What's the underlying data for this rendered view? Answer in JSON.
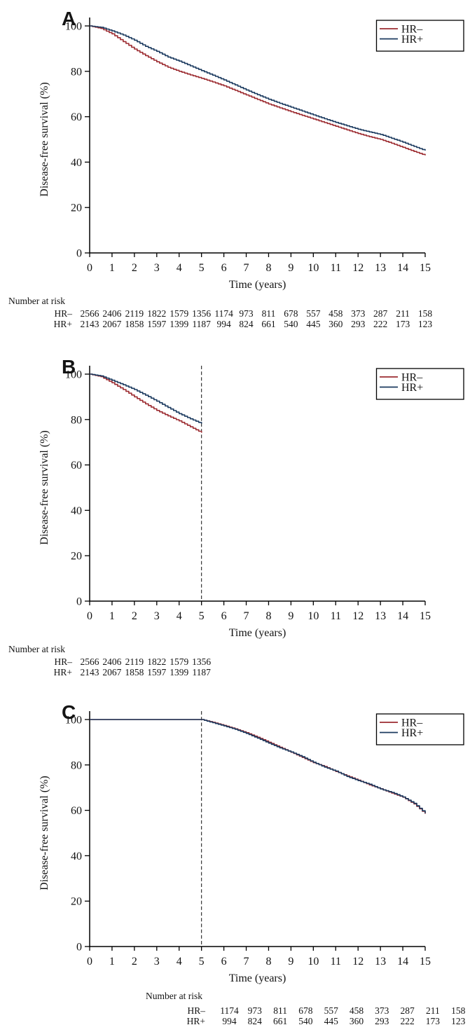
{
  "figure": {
    "ylabel": "Disease-free survival (%)",
    "xlabel": "Time (years)",
    "risk_heading": "Number at risk",
    "colors": {
      "hr_minus": "#9c2b30",
      "hr_plus": "#1b3a5f",
      "axis": "#000000",
      "dashed": "#222222"
    }
  },
  "chart_data": [
    {
      "panel_label": "A",
      "type": "line",
      "xlabel": "Time (years)",
      "ylabel": "Disease-free survival (%)",
      "xlim": [
        0,
        15
      ],
      "ylim": [
        0,
        100
      ],
      "xticks": [
        0,
        1,
        2,
        3,
        4,
        5,
        6,
        7,
        8,
        9,
        10,
        11,
        12,
        13,
        14,
        15
      ],
      "yticks": [
        0,
        20,
        40,
        60,
        80,
        100
      ],
      "legend_position": "top-right",
      "dashed_vline_x": null,
      "series": [
        {
          "name": "HR–",
          "color": "#9c2b30",
          "x": [
            0,
            0.5,
            1,
            1.5,
            2,
            2.5,
            3,
            3.5,
            4,
            4.5,
            5,
            5.5,
            6,
            6.5,
            7,
            7.5,
            8,
            8.5,
            9,
            9.5,
            10,
            10.5,
            11,
            11.5,
            12,
            12.5,
            13,
            13.5,
            14,
            14.5,
            15
          ],
          "y": [
            100,
            98.9,
            96.5,
            93.1,
            89.8,
            86.9,
            84.2,
            81.8,
            80.0,
            78.4,
            76.9,
            75.3,
            73.6,
            71.6,
            69.6,
            67.6,
            65.6,
            63.9,
            62.2,
            60.6,
            59.0,
            57.4,
            55.8,
            54.2,
            52.6,
            51.2,
            50.0,
            48.3,
            46.5,
            44.7,
            43.0
          ]
        },
        {
          "name": "HR+",
          "color": "#1b3a5f",
          "x": [
            0,
            0.5,
            1,
            1.5,
            2,
            2.5,
            3,
            3.5,
            4,
            4.5,
            5,
            5.5,
            6,
            6.5,
            7,
            7.5,
            8,
            8.5,
            9,
            9.5,
            10,
            10.5,
            11,
            11.5,
            12,
            12.5,
            13,
            13.5,
            14,
            14.5,
            15
          ],
          "y": [
            100,
            99.4,
            97.8,
            96.0,
            93.7,
            91.0,
            88.8,
            86.3,
            84.5,
            82.4,
            80.3,
            78.3,
            76.2,
            74.0,
            71.8,
            69.7,
            67.7,
            65.9,
            64.2,
            62.5,
            60.8,
            59.1,
            57.5,
            56.0,
            54.5,
            53.3,
            52.2,
            50.5,
            48.8,
            46.9,
            45.1
          ]
        }
      ],
      "number_at_risk": {
        "heading": "Number at risk",
        "time_points": [
          0,
          1,
          2,
          3,
          4,
          5,
          6,
          7,
          8,
          9,
          10,
          11,
          12,
          13,
          14,
          15
        ],
        "rows": [
          {
            "name": "HR–",
            "values": [
              2566,
              2406,
              2119,
              1822,
              1579,
              1356,
              1174,
              973,
              811,
              678,
              557,
              458,
              373,
              287,
              211,
              158
            ]
          },
          {
            "name": "HR+",
            "values": [
              2143,
              2067,
              1858,
              1597,
              1399,
              1187,
              994,
              824,
              661,
              540,
              445,
              360,
              293,
              222,
              173,
              123
            ]
          }
        ]
      }
    },
    {
      "panel_label": "B",
      "type": "line",
      "xlabel": "Time (years)",
      "ylabel": "Disease-free survival (%)",
      "xlim": [
        0,
        15
      ],
      "ylim": [
        0,
        100
      ],
      "xticks": [
        0,
        1,
        2,
        3,
        4,
        5,
        6,
        7,
        8,
        9,
        10,
        11,
        12,
        13,
        14,
        15
      ],
      "yticks": [
        0,
        20,
        40,
        60,
        80,
        100
      ],
      "legend_position": "top-right",
      "dashed_vline_x": 5,
      "series": [
        {
          "name": "HR–",
          "color": "#9c2b30",
          "x": [
            0,
            0.5,
            1,
            1.5,
            2,
            2.5,
            3,
            3.5,
            4,
            4.5,
            5
          ],
          "y": [
            100,
            98.9,
            96.2,
            93.2,
            90.0,
            86.9,
            84.0,
            81.6,
            79.4,
            76.8,
            74.2
          ]
        },
        {
          "name": "HR+",
          "color": "#1b3a5f",
          "x": [
            0,
            0.5,
            1,
            1.5,
            2,
            2.5,
            3,
            3.5,
            4,
            4.5,
            5
          ],
          "y": [
            100,
            99.2,
            97.3,
            95.3,
            93.2,
            90.7,
            88.1,
            85.3,
            82.6,
            80.3,
            78.2
          ]
        }
      ],
      "number_at_risk": {
        "heading": "Number at risk",
        "time_points": [
          0,
          1,
          2,
          3,
          4,
          5
        ],
        "rows": [
          {
            "name": "HR–",
            "values": [
              2566,
              2406,
              2119,
              1822,
              1579,
              1356
            ]
          },
          {
            "name": "HR+",
            "values": [
              2143,
              2067,
              1858,
              1597,
              1399,
              1187
            ]
          }
        ]
      }
    },
    {
      "panel_label": "C",
      "type": "line",
      "xlabel": "Time (years)",
      "ylabel": "Disease-free survival (%)",
      "xlim": [
        0,
        15
      ],
      "ylim": [
        0,
        100
      ],
      "xticks": [
        0,
        1,
        2,
        3,
        4,
        5,
        6,
        7,
        8,
        9,
        10,
        11,
        12,
        13,
        14,
        15
      ],
      "yticks": [
        0,
        20,
        40,
        60,
        80,
        100
      ],
      "legend_position": "top-right",
      "dashed_vline_x": 5,
      "series": [
        {
          "name": "HR–",
          "color": "#9c2b30",
          "x": [
            0,
            5,
            5.5,
            6,
            6.5,
            7,
            7.5,
            8,
            8.5,
            9,
            9.5,
            10,
            10.5,
            11,
            11.5,
            12,
            12.5,
            13,
            13.5,
            14,
            14.5,
            15
          ],
          "y": [
            100,
            100,
            98.8,
            97.4,
            95.9,
            94.2,
            92.2,
            90.0,
            87.8,
            85.6,
            83.3,
            81.0,
            79.3,
            77.1,
            75.2,
            73.3,
            71.2,
            69.5,
            67.6,
            65.8,
            62.8,
            58.5
          ]
        },
        {
          "name": "HR+",
          "color": "#1b3a5f",
          "x": [
            0,
            5,
            5.5,
            6,
            6.5,
            7,
            7.5,
            8,
            8.5,
            9,
            9.5,
            10,
            10.5,
            11,
            11.5,
            12,
            12.5,
            13,
            13.5,
            14,
            14.5,
            15
          ],
          "y": [
            100,
            100,
            98.6,
            97.2,
            95.7,
            93.9,
            91.8,
            89.6,
            87.5,
            85.7,
            83.6,
            81.2,
            79.0,
            77.3,
            74.9,
            73.1,
            71.5,
            69.4,
            67.9,
            65.9,
            63.1,
            58.7
          ]
        }
      ],
      "number_at_risk": {
        "heading": "Number at risk",
        "time_points": [
          6,
          7,
          8,
          9,
          10,
          11,
          12,
          13,
          14,
          15
        ],
        "rows": [
          {
            "name": "HR–",
            "values": [
              1174,
              973,
              811,
              678,
              557,
              458,
              373,
              287,
              211,
              158
            ]
          },
          {
            "name": "HR+",
            "values": [
              994,
              824,
              661,
              540,
              445,
              360,
              293,
              222,
              173,
              123
            ]
          }
        ]
      }
    }
  ],
  "legend": {
    "entries": [
      {
        "label": "HR–",
        "color": "#9c2b30"
      },
      {
        "label": "HR+",
        "color": "#1b3a5f"
      }
    ]
  }
}
